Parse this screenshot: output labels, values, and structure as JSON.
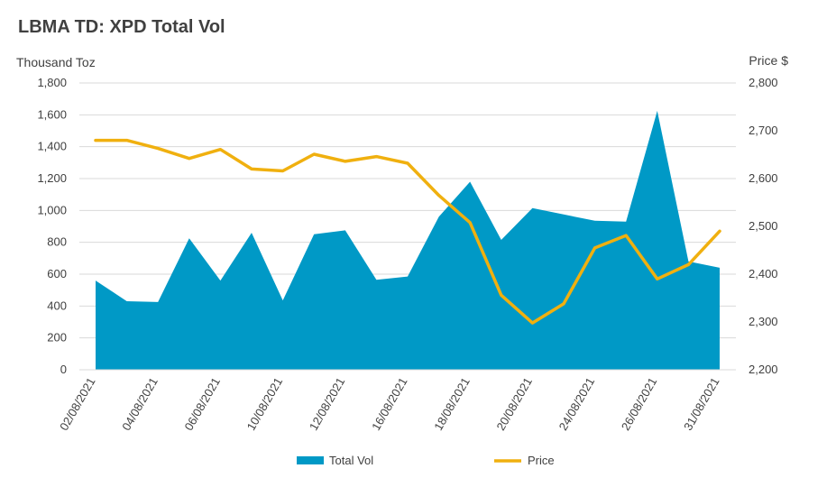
{
  "chart_data": {
    "type": "area",
    "title": "LBMA TD: XPD Total Vol",
    "y_left_label": "Thousand Toz",
    "y_right_label": "Price $",
    "x_tick_labels": [
      "02/08/2021",
      "04/08/2021",
      "06/08/2021",
      "10/08/2021",
      "12/08/2021",
      "16/08/2021",
      "18/08/2021",
      "20/08/2021",
      "24/08/2021",
      "26/08/2021",
      "31/08/2021"
    ],
    "y_left_ticks": [
      "0",
      "200",
      "400",
      "600",
      "800",
      "1,000",
      "1,200",
      "1,400",
      "1,600",
      "1,800"
    ],
    "y_right_ticks": [
      "2,200",
      "2,300",
      "2,400",
      "2,500",
      "2,600",
      "2,700",
      "2,800"
    ],
    "y_left_range": [
      0,
      1800
    ],
    "y_right_range": [
      2200,
      2800
    ],
    "x": [
      "02/08/2021",
      "03/08/2021",
      "04/08/2021",
      "05/08/2021",
      "06/08/2021",
      "09/08/2021",
      "10/08/2021",
      "11/08/2021",
      "12/08/2021",
      "13/08/2021",
      "16/08/2021",
      "17/08/2021",
      "18/08/2021",
      "19/08/2021",
      "20/08/2021",
      "23/08/2021",
      "24/08/2021",
      "25/08/2021",
      "26/08/2021",
      "27/08/2021",
      "31/08/2021"
    ],
    "series": [
      {
        "name": "Total Vol",
        "type": "area",
        "axis": "left",
        "color": "#0099c6",
        "values": [
          560,
          430,
          425,
          825,
          560,
          860,
          435,
          850,
          875,
          565,
          585,
          960,
          1180,
          815,
          1015,
          975,
          935,
          930,
          1625,
          680,
          640
        ]
      },
      {
        "name": "Price",
        "type": "line",
        "axis": "right",
        "color": "#f0b00f",
        "values": [
          2680,
          2680,
          2663,
          2642,
          2661,
          2620,
          2616,
          2651,
          2636,
          2646,
          2632,
          2565,
          2508,
          2356,
          2298,
          2338,
          2455,
          2481,
          2390,
          2420,
          2490
        ]
      }
    ],
    "legend_position": "bottom",
    "grid": true
  }
}
